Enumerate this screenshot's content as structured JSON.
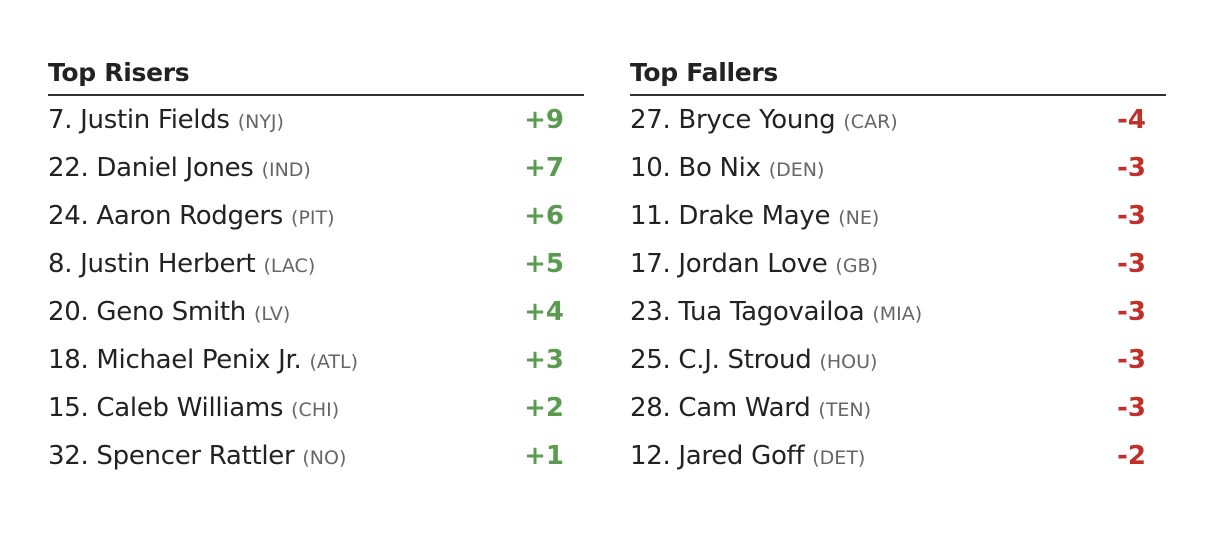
{
  "sections": [
    {
      "title": "Top Risers",
      "rows": [
        {
          "player": "7. Justin Fields",
          "team": "(NYJ)",
          "change": "+9"
        },
        {
          "player": "22. Daniel Jones",
          "team": "(IND)",
          "change": "+7"
        },
        {
          "player": "24. Aaron Rodgers",
          "team": "(PIT)",
          "change": "+6"
        },
        {
          "player": "8. Justin Herbert",
          "team": "(LAC)",
          "change": "+5"
        },
        {
          "player": "20. Geno Smith",
          "team": "(LV)",
          "change": "+4"
        },
        {
          "player": "18. Michael Penix Jr.",
          "team": "(ATL)",
          "change": "+3"
        },
        {
          "player": "15. Caleb Williams",
          "team": "(CHI)",
          "change": "+2"
        },
        {
          "player": "32. Spencer Rattler",
          "team": "(NO)",
          "change": "+1"
        }
      ]
    },
    {
      "title": "Top Fallers",
      "rows": [
        {
          "player": "27. Bryce Young",
          "team": "(CAR)",
          "change": "-4"
        },
        {
          "player": "10. Bo Nix",
          "team": "(DEN)",
          "change": "-3"
        },
        {
          "player": "11. Drake Maye",
          "team": "(NE)",
          "change": "-3"
        },
        {
          "player": "17. Jordan Love",
          "team": "(GB)",
          "change": "-3"
        },
        {
          "player": "23. Tua Tagovailoa",
          "team": "(MIA)",
          "change": "-3"
        },
        {
          "player": "25. C.J. Stroud",
          "team": "(HOU)",
          "change": "-3"
        },
        {
          "player": "28. Cam Ward",
          "team": "(TEN)",
          "change": "-3"
        },
        {
          "player": "12. Jared Goff",
          "team": "(DET)",
          "change": "-2"
        }
      ]
    }
  ]
}
